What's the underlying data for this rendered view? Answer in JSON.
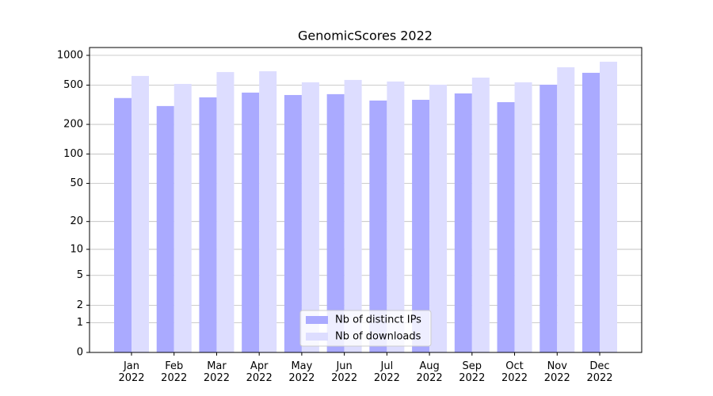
{
  "chart_data": {
    "type": "bar",
    "title": "GenomicScores 2022",
    "categories": [
      "Jan 2022",
      "Feb 2022",
      "Mar 2022",
      "Apr 2022",
      "May 2022",
      "Jun 2022",
      "Jul 2022",
      "Aug 2022",
      "Sep 2022",
      "Oct 2022",
      "Nov 2022",
      "Dec 2022"
    ],
    "series": [
      {
        "name": "Nb of distinct IPs",
        "color": "#aaaaff",
        "values": [
          370,
          307,
          376,
          420,
          397,
          405,
          349,
          355,
          412,
          336,
          505,
          666
        ]
      },
      {
        "name": "Nb of downloads",
        "color": "#ddddff",
        "values": [
          619,
          514,
          678,
          691,
          534,
          564,
          544,
          505,
          596,
          534,
          758,
          862
        ]
      }
    ],
    "yscale": "log1p",
    "ylim": [
      0,
      1200
    ],
    "yticks": [
      0,
      1,
      2,
      5,
      10,
      20,
      50,
      100,
      200,
      500,
      1000
    ],
    "grid": true,
    "legend": "lower center"
  }
}
